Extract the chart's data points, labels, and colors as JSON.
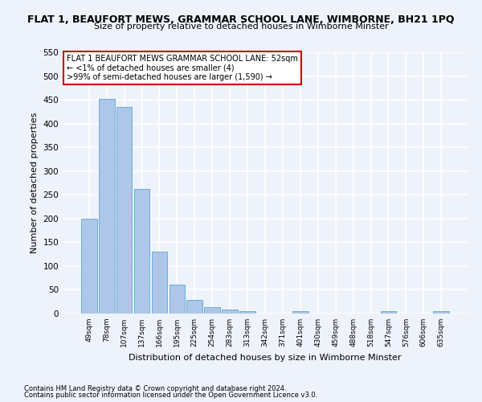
{
  "title": "FLAT 1, BEAUFORT MEWS, GRAMMAR SCHOOL LANE, WIMBORNE, BH21 1PQ",
  "subtitle": "Size of property relative to detached houses in Wimborne Minster",
  "xlabel": "Distribution of detached houses by size in Wimborne Minster",
  "ylabel": "Number of detached properties",
  "footnote1": "Contains HM Land Registry data © Crown copyright and database right 2024.",
  "footnote2": "Contains public sector information licensed under the Open Government Licence v3.0.",
  "annotation_line1": "FLAT 1 BEAUFORT MEWS GRAMMAR SCHOOL LANE: 52sqm",
  "annotation_line2": "← <1% of detached houses are smaller (4)",
  "annotation_line3": ">99% of semi-detached houses are larger (1,590) →",
  "bar_labels": [
    "49sqm",
    "78sqm",
    "107sqm",
    "137sqm",
    "166sqm",
    "195sqm",
    "225sqm",
    "254sqm",
    "283sqm",
    "313sqm",
    "342sqm",
    "371sqm",
    "401sqm",
    "430sqm",
    "459sqm",
    "488sqm",
    "518sqm",
    "547sqm",
    "576sqm",
    "606sqm",
    "635sqm"
  ],
  "bar_values": [
    200,
    452,
    435,
    263,
    130,
    61,
    28,
    14,
    8,
    5,
    0,
    0,
    5,
    0,
    0,
    0,
    0,
    5,
    0,
    0,
    5
  ],
  "bar_color": "#aec6e8",
  "bar_edge_color": "#6baed6",
  "background_color": "#eef3fb",
  "grid_color": "#ffffff",
  "ylim": [
    0,
    550
  ],
  "yticks": [
    0,
    50,
    100,
    150,
    200,
    250,
    300,
    350,
    400,
    450,
    500,
    550
  ],
  "title_fontsize": 9,
  "subtitle_fontsize": 8,
  "ylabel_fontsize": 8,
  "xlabel_fontsize": 8,
  "annotation_box_color": "#ffffff",
  "annotation_box_edge_color": "#cc0000",
  "annotation_fontsize": 7,
  "footnote_fontsize": 6
}
